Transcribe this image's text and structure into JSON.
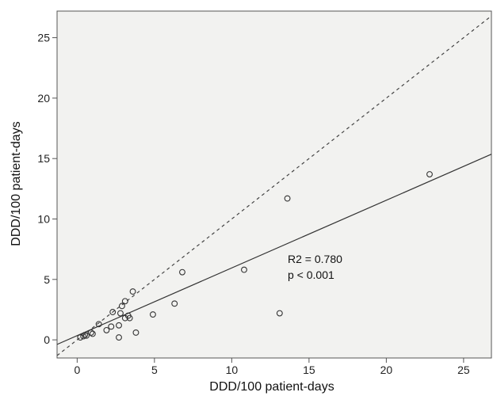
{
  "chart_data": {
    "type": "scatter",
    "xlabel": "DDD/100 patient-days",
    "ylabel": "DDD/100 patient-days",
    "xlim": [
      -1.3,
      26.8
    ],
    "ylim": [
      -1.5,
      27.2
    ],
    "xticks": [
      0,
      5,
      10,
      15,
      20,
      25
    ],
    "yticks": [
      0,
      5,
      10,
      15,
      20,
      25
    ],
    "grid": false,
    "colors": {
      "plot_background": "#f2f2f0",
      "frame": "#555555",
      "marker": "#333333",
      "line": "#333333"
    },
    "points": [
      {
        "x": 0.2,
        "y": 0.2
      },
      {
        "x": 0.4,
        "y": 0.3
      },
      {
        "x": 0.5,
        "y": 0.4
      },
      {
        "x": 0.6,
        "y": 0.35
      },
      {
        "x": 0.9,
        "y": 0.6
      },
      {
        "x": 1.0,
        "y": 0.5
      },
      {
        "x": 1.4,
        "y": 1.3
      },
      {
        "x": 1.9,
        "y": 0.8
      },
      {
        "x": 2.2,
        "y": 1.1
      },
      {
        "x": 2.3,
        "y": 2.3
      },
      {
        "x": 2.7,
        "y": 1.2
      },
      {
        "x": 2.7,
        "y": 0.2
      },
      {
        "x": 2.8,
        "y": 2.2
      },
      {
        "x": 2.9,
        "y": 2.8
      },
      {
        "x": 3.1,
        "y": 1.8
      },
      {
        "x": 3.1,
        "y": 3.2
      },
      {
        "x": 3.3,
        "y": 2.0
      },
      {
        "x": 3.4,
        "y": 1.8
      },
      {
        "x": 3.6,
        "y": 4.0
      },
      {
        "x": 3.8,
        "y": 0.6
      },
      {
        "x": 4.9,
        "y": 2.1
      },
      {
        "x": 6.3,
        "y": 3.0
      },
      {
        "x": 6.8,
        "y": 5.6
      },
      {
        "x": 10.8,
        "y": 5.8
      },
      {
        "x": 13.1,
        "y": 2.2
      },
      {
        "x": 13.6,
        "y": 11.7
      },
      {
        "x": 22.8,
        "y": 13.7
      }
    ],
    "fit_line": {
      "style": "solid",
      "intercept": 0.35,
      "slope": 0.56
    },
    "reference_line": {
      "style": "dashed",
      "intercept": 0,
      "slope": 1
    },
    "annotation": {
      "line1": "R2 = 0.780",
      "line2": "p < 0.001"
    }
  }
}
